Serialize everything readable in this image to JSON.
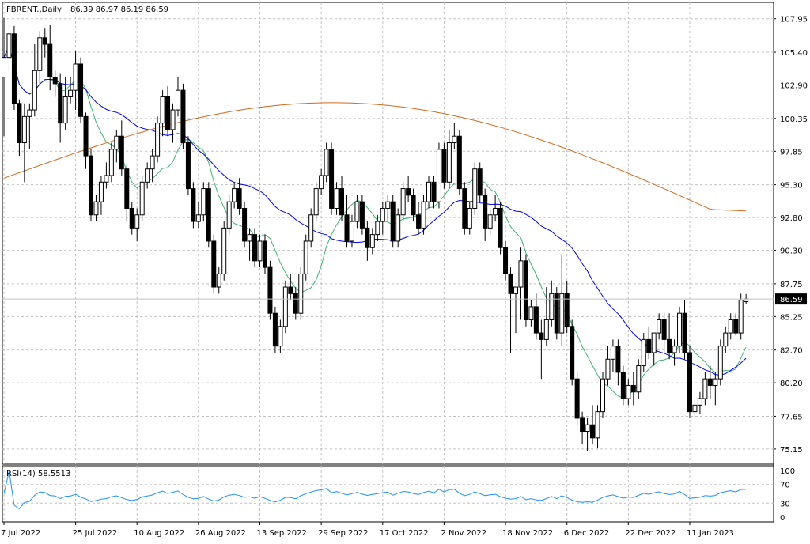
{
  "header": {
    "symbol_label": "FBRENT.,Daily",
    "ohlc_label": "86.39 86.97 86.19 86.59"
  },
  "rsi_panel": {
    "label": "RSI(14) 58.5513"
  },
  "colors": {
    "background": "#ffffff",
    "grid": "#c0c0c0",
    "bull_body": "#ffffff",
    "bear_body": "#000000",
    "ma_fast": "#3cb371",
    "ma_medium": "#0000ff",
    "ma_slow": "#d2691e",
    "rsi_line": "#1e90ff",
    "price_tag_bg": "#000000",
    "price_tag_text": "#ffffff"
  },
  "chart_data": {
    "type": "candlestick",
    "title": "FBRENT.,Daily",
    "current_price": 86.59,
    "price_axis": {
      "ylim": [
        74.0,
        109.2
      ],
      "ticks": [
        107.95,
        105.4,
        102.9,
        100.35,
        97.85,
        95.3,
        92.8,
        90.3,
        87.75,
        85.25,
        82.7,
        80.2,
        77.65,
        75.15
      ]
    },
    "rsi_axis": {
      "ylim": [
        0,
        100
      ],
      "ticks": [
        100,
        70,
        30,
        0
      ],
      "levels": [
        70,
        30
      ]
    },
    "x_axis": {
      "tick_labels": [
        "7 Jul 2022",
        "25 Jul 2022",
        "10 Aug 2022",
        "26 Aug 2022",
        "13 Sep 2022",
        "29 Sep 2022",
        "17 Oct 2022",
        "2 Nov 2022",
        "18 Nov 2022",
        "6 Dec 2022",
        "22 Dec 2022",
        "11 Jan 2023"
      ],
      "tick_bar_index": [
        0,
        14,
        26,
        38,
        50,
        62,
        74,
        86,
        98,
        110,
        122,
        134
      ]
    },
    "candles": [
      {
        "o": 103.5,
        "h": 108.0,
        "l": 99.0,
        "c": 105.0
      },
      {
        "o": 105.0,
        "h": 107.5,
        "l": 104.0,
        "c": 106.8
      },
      {
        "o": 106.8,
        "h": 107.4,
        "l": 101.0,
        "c": 101.5
      },
      {
        "o": 101.5,
        "h": 101.8,
        "l": 97.5,
        "c": 98.5
      },
      {
        "o": 98.5,
        "h": 101.5,
        "l": 95.5,
        "c": 100.5
      },
      {
        "o": 100.5,
        "h": 101.5,
        "l": 98.0,
        "c": 101.0
      },
      {
        "o": 101.0,
        "h": 106.0,
        "l": 100.5,
        "c": 104.0
      },
      {
        "o": 104.0,
        "h": 107.0,
        "l": 103.0,
        "c": 106.5
      },
      {
        "o": 106.5,
        "h": 107.2,
        "l": 105.0,
        "c": 106.0
      },
      {
        "o": 106.0,
        "h": 107.5,
        "l": 102.5,
        "c": 103.5
      },
      {
        "o": 103.5,
        "h": 104.0,
        "l": 102.0,
        "c": 103.0
      },
      {
        "o": 103.0,
        "h": 103.8,
        "l": 98.5,
        "c": 100.0
      },
      {
        "o": 100.0,
        "h": 103.5,
        "l": 99.5,
        "c": 102.0
      },
      {
        "o": 102.0,
        "h": 103.5,
        "l": 101.5,
        "c": 102.5
      },
      {
        "o": 102.5,
        "h": 105.5,
        "l": 101.0,
        "c": 104.5
      },
      {
        "o": 104.5,
        "h": 105.0,
        "l": 100.0,
        "c": 100.5
      },
      {
        "o": 100.5,
        "h": 100.8,
        "l": 96.5,
        "c": 97.5
      },
      {
        "o": 97.5,
        "h": 98.0,
        "l": 92.5,
        "c": 93.0
      },
      {
        "o": 93.0,
        "h": 94.5,
        "l": 92.5,
        "c": 94.0
      },
      {
        "o": 94.0,
        "h": 96.0,
        "l": 93.0,
        "c": 95.5
      },
      {
        "o": 95.5,
        "h": 97.0,
        "l": 95.0,
        "c": 96.0
      },
      {
        "o": 96.0,
        "h": 98.5,
        "l": 95.5,
        "c": 98.0
      },
      {
        "o": 98.0,
        "h": 99.5,
        "l": 97.0,
        "c": 99.0
      },
      {
        "o": 99.0,
        "h": 100.2,
        "l": 96.0,
        "c": 96.5
      },
      {
        "o": 96.5,
        "h": 96.8,
        "l": 92.5,
        "c": 93.5
      },
      {
        "o": 93.5,
        "h": 94.0,
        "l": 91.5,
        "c": 92.0
      },
      {
        "o": 92.0,
        "h": 93.5,
        "l": 91.0,
        "c": 93.0
      },
      {
        "o": 93.0,
        "h": 96.0,
        "l": 92.5,
        "c": 95.5
      },
      {
        "o": 95.5,
        "h": 97.0,
        "l": 95.0,
        "c": 96.5
      },
      {
        "o": 96.5,
        "h": 98.0,
        "l": 95.5,
        "c": 97.5
      },
      {
        "o": 97.5,
        "h": 100.5,
        "l": 97.0,
        "c": 100.0
      },
      {
        "o": 100.0,
        "h": 102.5,
        "l": 99.0,
        "c": 102.0
      },
      {
        "o": 102.0,
        "h": 102.8,
        "l": 99.0,
        "c": 99.5
      },
      {
        "o": 99.5,
        "h": 101.5,
        "l": 98.5,
        "c": 101.0
      },
      {
        "o": 101.0,
        "h": 103.5,
        "l": 100.5,
        "c": 102.5
      },
      {
        "o": 102.5,
        "h": 103.0,
        "l": 98.0,
        "c": 98.5
      },
      {
        "o": 98.5,
        "h": 99.0,
        "l": 94.5,
        "c": 95.0
      },
      {
        "o": 95.0,
        "h": 95.5,
        "l": 92.0,
        "c": 92.5
      },
      {
        "o": 92.5,
        "h": 94.0,
        "l": 92.0,
        "c": 93.0
      },
      {
        "o": 93.0,
        "h": 95.5,
        "l": 92.5,
        "c": 95.0
      },
      {
        "o": 95.0,
        "h": 95.5,
        "l": 90.5,
        "c": 91.0
      },
      {
        "o": 91.0,
        "h": 91.5,
        "l": 87.0,
        "c": 87.5
      },
      {
        "o": 87.5,
        "h": 89.0,
        "l": 87.0,
        "c": 88.5
      },
      {
        "o": 88.5,
        "h": 92.5,
        "l": 88.0,
        "c": 92.0
      },
      {
        "o": 92.0,
        "h": 94.5,
        "l": 91.5,
        "c": 94.0
      },
      {
        "o": 94.0,
        "h": 95.5,
        "l": 93.5,
        "c": 95.0
      },
      {
        "o": 95.0,
        "h": 95.8,
        "l": 93.0,
        "c": 93.5
      },
      {
        "o": 93.5,
        "h": 94.0,
        "l": 90.5,
        "c": 91.0
      },
      {
        "o": 91.0,
        "h": 92.0,
        "l": 89.5,
        "c": 91.5
      },
      {
        "o": 91.5,
        "h": 92.0,
        "l": 89.0,
        "c": 89.5
      },
      {
        "o": 89.5,
        "h": 91.5,
        "l": 89.0,
        "c": 91.0
      },
      {
        "o": 91.0,
        "h": 91.5,
        "l": 88.5,
        "c": 89.0
      },
      {
        "o": 89.0,
        "h": 89.5,
        "l": 85.0,
        "c": 85.5
      },
      {
        "o": 85.5,
        "h": 86.0,
        "l": 82.5,
        "c": 83.0
      },
      {
        "o": 83.0,
        "h": 85.0,
        "l": 82.5,
        "c": 84.5
      },
      {
        "o": 84.5,
        "h": 88.0,
        "l": 84.0,
        "c": 87.5
      },
      {
        "o": 87.5,
        "h": 88.5,
        "l": 86.5,
        "c": 87.0
      },
      {
        "o": 87.0,
        "h": 87.5,
        "l": 85.0,
        "c": 85.5
      },
      {
        "o": 85.5,
        "h": 89.0,
        "l": 85.0,
        "c": 88.5
      },
      {
        "o": 88.5,
        "h": 91.5,
        "l": 88.0,
        "c": 91.0
      },
      {
        "o": 91.0,
        "h": 93.5,
        "l": 90.5,
        "c": 93.0
      },
      {
        "o": 93.0,
        "h": 95.5,
        "l": 92.5,
        "c": 95.0
      },
      {
        "o": 95.0,
        "h": 96.5,
        "l": 94.5,
        "c": 96.0
      },
      {
        "o": 96.0,
        "h": 98.5,
        "l": 95.5,
        "c": 98.0
      },
      {
        "o": 98.0,
        "h": 98.5,
        "l": 93.0,
        "c": 93.5
      },
      {
        "o": 93.5,
        "h": 95.5,
        "l": 93.0,
        "c": 95.0
      },
      {
        "o": 95.0,
        "h": 96.0,
        "l": 92.5,
        "c": 93.0
      },
      {
        "o": 93.0,
        "h": 94.5,
        "l": 90.5,
        "c": 91.0
      },
      {
        "o": 91.0,
        "h": 93.0,
        "l": 90.5,
        "c": 92.5
      },
      {
        "o": 92.5,
        "h": 94.5,
        "l": 92.0,
        "c": 94.0
      },
      {
        "o": 94.0,
        "h": 94.5,
        "l": 91.5,
        "c": 92.0
      },
      {
        "o": 92.0,
        "h": 92.5,
        "l": 89.5,
        "c": 90.5
      },
      {
        "o": 90.5,
        "h": 92.0,
        "l": 90.0,
        "c": 91.5
      },
      {
        "o": 91.5,
        "h": 93.0,
        "l": 91.0,
        "c": 92.5
      },
      {
        "o": 92.5,
        "h": 94.0,
        "l": 91.5,
        "c": 93.5
      },
      {
        "o": 93.5,
        "h": 94.5,
        "l": 92.5,
        "c": 94.0
      },
      {
        "o": 94.0,
        "h": 94.5,
        "l": 90.5,
        "c": 91.0
      },
      {
        "o": 91.0,
        "h": 93.5,
        "l": 90.5,
        "c": 93.0
      },
      {
        "o": 93.0,
        "h": 95.5,
        "l": 92.5,
        "c": 95.0
      },
      {
        "o": 95.0,
        "h": 96.0,
        "l": 94.0,
        "c": 94.5
      },
      {
        "o": 94.5,
        "h": 95.0,
        "l": 92.5,
        "c": 93.0
      },
      {
        "o": 93.0,
        "h": 94.0,
        "l": 91.5,
        "c": 92.0
      },
      {
        "o": 92.0,
        "h": 94.5,
        "l": 91.5,
        "c": 94.0
      },
      {
        "o": 94.0,
        "h": 96.0,
        "l": 93.5,
        "c": 95.5
      },
      {
        "o": 95.5,
        "h": 96.0,
        "l": 93.5,
        "c": 94.0
      },
      {
        "o": 94.0,
        "h": 98.5,
        "l": 93.5,
        "c": 98.0
      },
      {
        "o": 98.0,
        "h": 98.5,
        "l": 95.0,
        "c": 95.5
      },
      {
        "o": 95.5,
        "h": 99.5,
        "l": 95.0,
        "c": 98.5
      },
      {
        "o": 98.5,
        "h": 100.0,
        "l": 98.0,
        "c": 99.0
      },
      {
        "o": 99.0,
        "h": 99.5,
        "l": 94.5,
        "c": 95.0
      },
      {
        "o": 95.0,
        "h": 95.5,
        "l": 91.5,
        "c": 92.0
      },
      {
        "o": 92.0,
        "h": 94.0,
        "l": 91.5,
        "c": 93.5
      },
      {
        "o": 93.5,
        "h": 97.0,
        "l": 93.0,
        "c": 96.5
      },
      {
        "o": 96.5,
        "h": 97.0,
        "l": 94.0,
        "c": 94.5
      },
      {
        "o": 94.5,
        "h": 95.0,
        "l": 91.0,
        "c": 92.0
      },
      {
        "o": 92.0,
        "h": 93.5,
        "l": 91.5,
        "c": 93.0
      },
      {
        "o": 93.0,
        "h": 94.5,
        "l": 92.5,
        "c": 93.5
      },
      {
        "o": 93.5,
        "h": 94.0,
        "l": 90.0,
        "c": 90.5
      },
      {
        "o": 90.5,
        "h": 91.0,
        "l": 88.0,
        "c": 88.5
      },
      {
        "o": 88.5,
        "h": 89.0,
        "l": 82.5,
        "c": 87.0
      },
      {
        "o": 87.0,
        "h": 87.5,
        "l": 84.0,
        "c": 87.5
      },
      {
        "o": 87.5,
        "h": 90.5,
        "l": 85.0,
        "c": 89.5
      },
      {
        "o": 89.5,
        "h": 90.0,
        "l": 84.5,
        "c": 85.0
      },
      {
        "o": 85.0,
        "h": 86.5,
        "l": 84.5,
        "c": 86.0
      },
      {
        "o": 86.0,
        "h": 87.0,
        "l": 83.5,
        "c": 84.0
      },
      {
        "o": 84.0,
        "h": 85.0,
        "l": 80.5,
        "c": 83.5
      },
      {
        "o": 83.5,
        "h": 87.5,
        "l": 83.0,
        "c": 85.0
      },
      {
        "o": 85.0,
        "h": 88.0,
        "l": 84.5,
        "c": 87.0
      },
      {
        "o": 87.0,
        "h": 87.5,
        "l": 83.5,
        "c": 84.0
      },
      {
        "o": 84.0,
        "h": 90.0,
        "l": 83.0,
        "c": 87.0
      },
      {
        "o": 87.0,
        "h": 88.0,
        "l": 84.0,
        "c": 84.5
      },
      {
        "o": 84.5,
        "h": 85.0,
        "l": 80.0,
        "c": 80.5
      },
      {
        "o": 80.5,
        "h": 81.0,
        "l": 77.0,
        "c": 77.5
      },
      {
        "o": 77.5,
        "h": 78.0,
        "l": 75.5,
        "c": 76.5
      },
      {
        "o": 76.5,
        "h": 77.5,
        "l": 75.0,
        "c": 77.0
      },
      {
        "o": 77.0,
        "h": 78.5,
        "l": 75.5,
        "c": 76.0
      },
      {
        "o": 76.0,
        "h": 78.5,
        "l": 75.2,
        "c": 78.0
      },
      {
        "o": 78.0,
        "h": 81.0,
        "l": 77.5,
        "c": 80.5
      },
      {
        "o": 80.5,
        "h": 83.0,
        "l": 80.0,
        "c": 82.0
      },
      {
        "o": 82.0,
        "h": 83.5,
        "l": 81.0,
        "c": 83.0
      },
      {
        "o": 83.0,
        "h": 83.5,
        "l": 80.0,
        "c": 81.0
      },
      {
        "o": 81.0,
        "h": 81.5,
        "l": 78.5,
        "c": 79.0
      },
      {
        "o": 79.0,
        "h": 80.5,
        "l": 78.5,
        "c": 80.0
      },
      {
        "o": 80.0,
        "h": 81.0,
        "l": 78.5,
        "c": 79.5
      },
      {
        "o": 79.5,
        "h": 82.0,
        "l": 79.0,
        "c": 81.5
      },
      {
        "o": 81.5,
        "h": 84.0,
        "l": 81.0,
        "c": 83.5
      },
      {
        "o": 83.5,
        "h": 84.5,
        "l": 82.0,
        "c": 82.5
      },
      {
        "o": 82.5,
        "h": 84.0,
        "l": 81.5,
        "c": 84.0
      },
      {
        "o": 84.0,
        "h": 85.5,
        "l": 83.5,
        "c": 85.0
      },
      {
        "o": 85.0,
        "h": 85.5,
        "l": 82.5,
        "c": 83.5
      },
      {
        "o": 83.5,
        "h": 85.5,
        "l": 82.0,
        "c": 82.5
      },
      {
        "o": 82.5,
        "h": 83.5,
        "l": 81.5,
        "c": 83.0
      },
      {
        "o": 83.0,
        "h": 86.0,
        "l": 82.5,
        "c": 85.5
      },
      {
        "o": 85.5,
        "h": 86.5,
        "l": 82.0,
        "c": 82.5
      },
      {
        "o": 82.5,
        "h": 83.0,
        "l": 77.5,
        "c": 78.0
      },
      {
        "o": 78.0,
        "h": 79.0,
        "l": 77.5,
        "c": 78.5
      },
      {
        "o": 78.5,
        "h": 79.5,
        "l": 77.8,
        "c": 79.0
      },
      {
        "o": 79.0,
        "h": 81.0,
        "l": 78.5,
        "c": 80.5
      },
      {
        "o": 80.5,
        "h": 81.5,
        "l": 79.0,
        "c": 80.0
      },
      {
        "o": 80.0,
        "h": 81.0,
        "l": 78.5,
        "c": 80.5
      },
      {
        "o": 80.5,
        "h": 83.5,
        "l": 80.0,
        "c": 83.0
      },
      {
        "o": 83.0,
        "h": 84.5,
        "l": 82.5,
        "c": 84.0
      },
      {
        "o": 84.0,
        "h": 85.5,
        "l": 83.5,
        "c": 85.0
      },
      {
        "o": 85.0,
        "h": 85.5,
        "l": 83.8,
        "c": 84.0
      },
      {
        "o": 84.0,
        "h": 87.0,
        "l": 83.5,
        "c": 86.5
      },
      {
        "o": 86.39,
        "h": 86.97,
        "l": 86.19,
        "c": 86.59
      }
    ],
    "series": [
      {
        "key": "ma_fast",
        "type": "line",
        "color_key": "ma_fast",
        "values": []
      },
      {
        "key": "ma_medium",
        "type": "line",
        "color_key": "ma_medium",
        "values": []
      },
      {
        "key": "ma_slow",
        "type": "line",
        "color_key": "ma_slow",
        "values": []
      }
    ],
    "rsi_values": [],
    "ma_periods": {
      "ma_fast": 10,
      "ma_medium": 30,
      "ma_slow": 200
    }
  }
}
